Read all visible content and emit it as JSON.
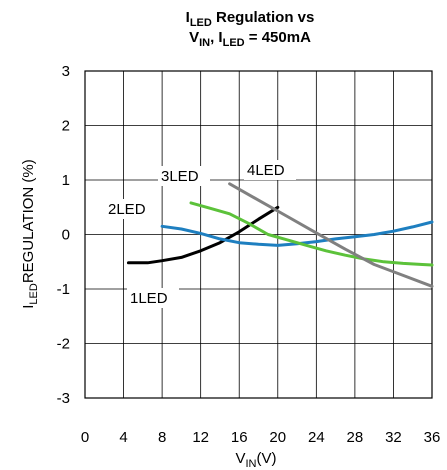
{
  "chart_data": {
    "type": "line",
    "title": {
      "line1": {
        "main": "I",
        "sub": "LED",
        "rest": " Regulation vs"
      },
      "line2": {
        "v": "V",
        "v_sub": "IN",
        "sep": ", I",
        "i_sub": "LED",
        "rest": " = 450mA"
      }
    },
    "xlabel": {
      "main": "V",
      "sub": "IN",
      "unit": "(V)"
    },
    "ylabel": {
      "main": "I",
      "sub": "LED",
      "rest": "REGULATION (%)"
    },
    "xlim": [
      0,
      36
    ],
    "ylim": [
      -3,
      3
    ],
    "x_ticks": [
      0,
      4,
      8,
      12,
      16,
      20,
      24,
      28,
      32,
      36
    ],
    "y_ticks": [
      3,
      2,
      1,
      0,
      -1,
      -2,
      -3
    ],
    "grid": true,
    "series": [
      {
        "name": "1LED",
        "color": "#000000",
        "x": [
          4.5,
          6.5,
          8,
          10,
          12,
          14,
          16,
          18,
          20
        ],
        "y": [
          -0.52,
          -0.52,
          -0.48,
          -0.42,
          -0.3,
          -0.15,
          0.05,
          0.28,
          0.5
        ]
      },
      {
        "name": "2LED",
        "color": "#1e7fc0",
        "x": [
          8,
          10,
          12,
          14,
          16,
          18,
          20,
          22,
          24,
          26,
          28,
          30,
          32,
          34,
          36
        ],
        "y": [
          0.15,
          0.1,
          0.02,
          -0.08,
          -0.15,
          -0.18,
          -0.2,
          -0.17,
          -0.13,
          -0.08,
          -0.04,
          0.0,
          0.06,
          0.14,
          0.23
        ]
      },
      {
        "name": "3LED",
        "color": "#5cc23a",
        "x": [
          11,
          13,
          15,
          17,
          19,
          21,
          23,
          25,
          27,
          29,
          31,
          33,
          35,
          36
        ],
        "y": [
          0.58,
          0.48,
          0.38,
          0.2,
          0.0,
          -0.1,
          -0.2,
          -0.3,
          -0.38,
          -0.45,
          -0.5,
          -0.53,
          -0.55,
          -0.56
        ]
      },
      {
        "name": "4LED",
        "color": "#808080",
        "x": [
          15,
          18,
          21,
          24,
          27,
          30,
          33,
          36
        ],
        "y": [
          0.93,
          0.63,
          0.33,
          0.03,
          -0.27,
          -0.55,
          -0.75,
          -0.95
        ]
      }
    ]
  }
}
